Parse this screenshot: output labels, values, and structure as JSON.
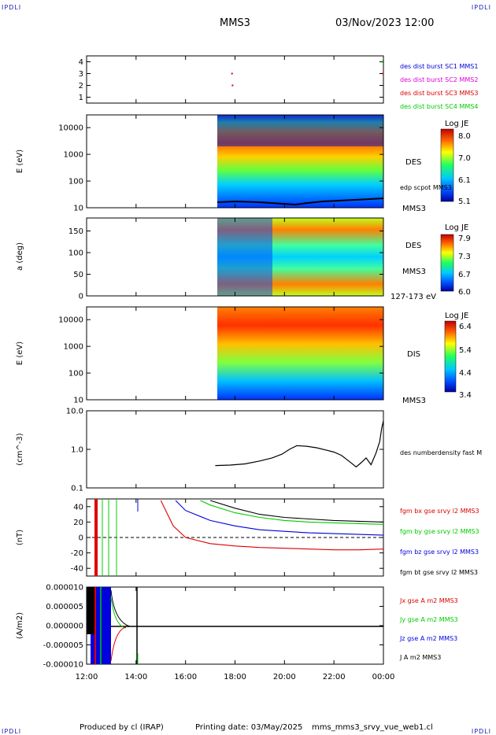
{
  "header": {
    "corner_tl": "IPDLI",
    "corner_tr": "IPDLI",
    "corner_bl": "IPDLI",
    "corner_br": "IPDLI",
    "spacecraft": "MMS3",
    "datetime": "03/Nov/2023 12:00"
  },
  "footer": {
    "producer": "Produced by cl (IRAP)",
    "printing": "Printing date: 03/May/2025",
    "script": "mms_mms3_srvy_vue_web1.cl"
  },
  "colors": {
    "mms1": "#0000dd",
    "mms2": "#dd00dd",
    "mms3": "#dd0000",
    "mms4": "#00cc00",
    "black": "#000000"
  },
  "chart_data": [
    {
      "type": "scatter",
      "id": "burst",
      "ylim": [
        0.5,
        4.5
      ],
      "yticks": [
        "1",
        "2",
        "3",
        "4"
      ],
      "legend": [
        {
          "name": "des dist burst SC1 MMS1",
          "color": "#0000dd"
        },
        {
          "name": "des dist burst SC2 MMS2",
          "color": "#dd00dd"
        },
        {
          "name": "des dist burst SC3 MMS3",
          "color": "#dd0000"
        },
        {
          "name": "des dist burst SC4 MMS4",
          "color": "#00cc00"
        }
      ],
      "points": [
        {
          "x": 5.88,
          "y": 3,
          "color": "#dd0000"
        },
        {
          "x": 5.9,
          "y": 2,
          "color": "#dd0000"
        },
        {
          "x": 11.98,
          "y": 3,
          "color": "#dd0000"
        },
        {
          "x": 11.95,
          "y": 4,
          "color": "#00cc00"
        }
      ]
    },
    {
      "type": "heatmap",
      "id": "des_energy",
      "ylabel": "E (eV)",
      "yscale": "log",
      "ylim": [
        10,
        30000
      ],
      "yticks": [
        "10",
        "100",
        "1000",
        "10000"
      ],
      "label": "DES",
      "sublabel": "MMS3",
      "overlay": "edp scpot MMS3",
      "colorbar": {
        "title": "Log JE",
        "ticks": [
          "8.0",
          "7.0",
          "6.1",
          "5.1"
        ]
      }
    },
    {
      "type": "heatmap",
      "id": "des_pitch",
      "ylabel": "a (deg)",
      "ylim": [
        0,
        180
      ],
      "yticks": [
        "0",
        "50",
        "100",
        "150"
      ],
      "label": "DES",
      "sublabel": "MMS3",
      "energy_range": "127-173 eV",
      "colorbar": {
        "title": "Log JE",
        "ticks": [
          "7.9",
          "7.3",
          "6.7",
          "6.0"
        ]
      }
    },
    {
      "type": "heatmap",
      "id": "dis_energy",
      "ylabel": "E (eV)",
      "yscale": "log",
      "ylim": [
        10,
        30000
      ],
      "yticks": [
        "10",
        "100",
        "1000",
        "10000"
      ],
      "label": "DIS",
      "sublabel": "MMS3",
      "colorbar": {
        "title": "Log JE",
        "ticks": [
          "6.4",
          "5.4",
          "4.4",
          "3.4"
        ]
      }
    },
    {
      "type": "line",
      "id": "density",
      "ylabel": "(cm^-3)",
      "yscale": "log",
      "ylim": [
        0.1,
        10
      ],
      "yticks": [
        "0.1",
        "1.0",
        "10.0"
      ],
      "series": [
        {
          "name": "des numberdensity fast M",
          "color": "#000000",
          "x": [
            5.2,
            5.8,
            6.4,
            7.0,
            7.5,
            7.9,
            8.2,
            8.5,
            8.9,
            9.3,
            9.7,
            10.0,
            10.3,
            10.6,
            10.9,
            11.1,
            11.3,
            11.5,
            11.7,
            11.85,
            11.93,
            12.0
          ],
          "y": [
            0.38,
            0.39,
            0.42,
            0.5,
            0.6,
            0.75,
            1.0,
            1.25,
            1.2,
            1.1,
            0.95,
            0.85,
            0.7,
            0.5,
            0.35,
            0.45,
            0.6,
            0.4,
            0.8,
            1.6,
            3.5,
            5.5
          ]
        }
      ]
    },
    {
      "type": "line",
      "id": "bfield",
      "ylabel": "(nT)",
      "ylim": [
        -50,
        50
      ],
      "yticks": [
        "-40",
        "-20",
        "0",
        "20",
        "40"
      ],
      "series": [
        {
          "name": "fgm bx gse srvy l2 MMS3",
          "color": "#dd0000",
          "x": [
            3.0,
            3.5,
            4.0,
            5.0,
            6.0,
            7.0,
            8.0,
            9.0,
            10.0,
            11.0,
            12.0
          ],
          "y": [
            48,
            15,
            0,
            -8,
            -11,
            -13,
            -14,
            -15,
            -16,
            -16,
            -15
          ]
        },
        {
          "name": "fgm by gse srvy l2 MMS3",
          "color": "#00cc00",
          "x": [
            4.6,
            5.0,
            6.0,
            7.0,
            8.0,
            9.0,
            10.0,
            11.0,
            12.0
          ],
          "y": [
            48,
            42,
            32,
            26,
            22,
            20,
            19,
            18,
            17
          ]
        },
        {
          "name": "fgm bz gse srvy l2 MMS3",
          "color": "#0000dd",
          "x": [
            3.6,
            4.0,
            5.0,
            6.0,
            7.0,
            8.0,
            9.0,
            10.0,
            11.0,
            12.0
          ],
          "y": [
            48,
            35,
            22,
            15,
            10,
            8,
            6,
            5,
            4,
            3
          ]
        },
        {
          "name": "fgm bt gse srvy l2 MMS3",
          "color": "#000000",
          "x": [
            5.0,
            6.0,
            7.0,
            8.0,
            9.0,
            10.0,
            11.0,
            12.0
          ],
          "y": [
            48,
            38,
            30,
            26,
            24,
            22,
            21,
            20
          ]
        }
      ]
    },
    {
      "type": "line",
      "id": "current",
      "ylabel": "(A/m2)",
      "ylim": [
        -1e-05,
        1e-05
      ],
      "yticks": [
        "-0.000010",
        "-0.000005",
        "0.000000",
        "0.000005",
        "0.000010"
      ],
      "series": [
        {
          "name": "Jx gse A m2 MMS3",
          "color": "#dd0000"
        },
        {
          "name": "Jy gse A m2 MMS3",
          "color": "#00cc00"
        },
        {
          "name": "Jz gse A m2 MMS3",
          "color": "#0000dd"
        },
        {
          "name": "J A m2 MMS3",
          "color": "#000000"
        }
      ]
    }
  ],
  "xaxis": {
    "xlim": [
      0,
      12
    ],
    "ticks": [
      "12:00",
      "14:00",
      "16:00",
      "18:00",
      "20:00",
      "22:00",
      "00:00"
    ]
  }
}
